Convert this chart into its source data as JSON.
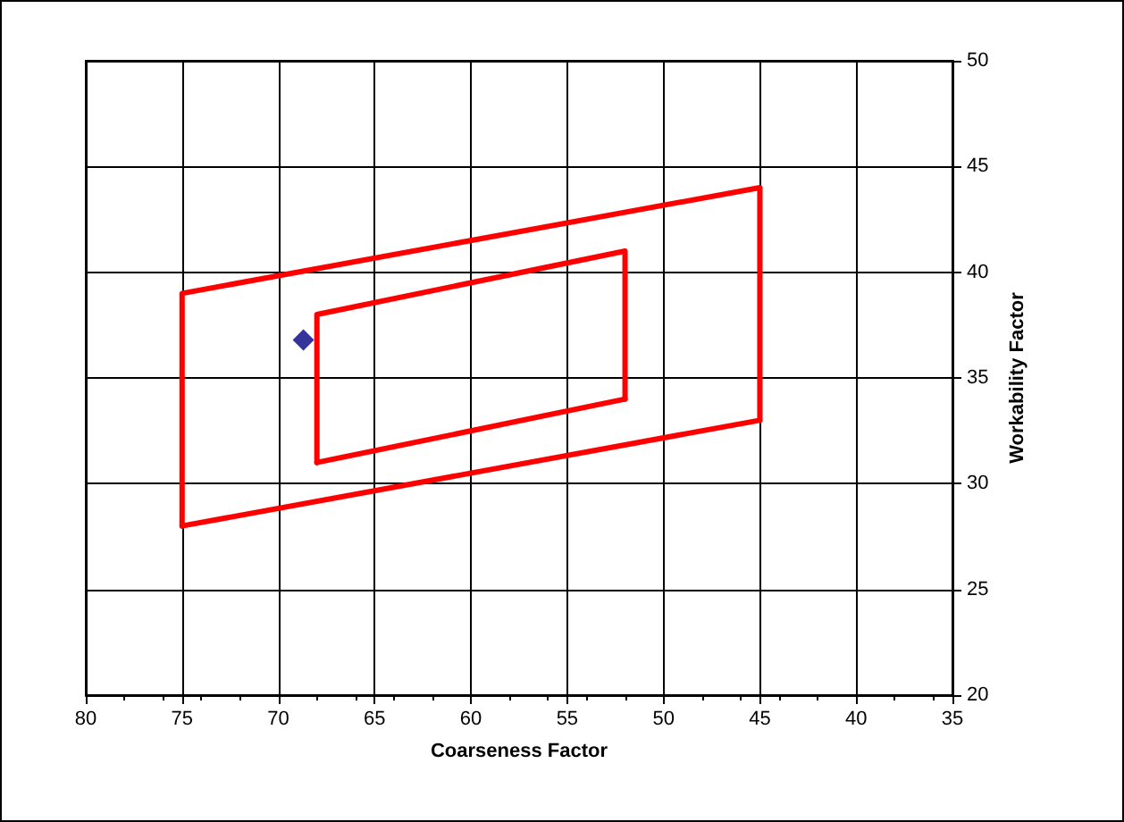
{
  "chart_data": {
    "type": "line",
    "xlabel": "Coarseness Factor",
    "ylabel": "Workability Factor",
    "xlim": [
      80,
      35
    ],
    "xticks": [
      80,
      75,
      70,
      65,
      60,
      55,
      50,
      45,
      40,
      35
    ],
    "ylim": [
      20,
      50
    ],
    "yticks": [
      20,
      25,
      30,
      35,
      40,
      45,
      50
    ],
    "grid": true,
    "line_style": "solid",
    "series": [
      {
        "color": "#ff0000",
        "x": [
          75,
          75,
          45,
          45
        ],
        "values": [
          28,
          39,
          44,
          33
        ]
      },
      {
        "color": "#ff0000",
        "x": [
          75,
          45
        ],
        "values": [
          28,
          33
        ]
      },
      {
        "color": "#ff0000",
        "x": [
          68,
          68,
          52,
          52
        ],
        "values": [
          31,
          38,
          41,
          34
        ]
      },
      {
        "color": "#ff0000",
        "x": [
          68,
          52
        ],
        "values": [
          31,
          34
        ]
      },
      {
        "type": "scatter",
        "marker": "diamond",
        "color": "#000080",
        "x": [
          68.7
        ],
        "values": [
          36.8
        ]
      }
    ]
  }
}
